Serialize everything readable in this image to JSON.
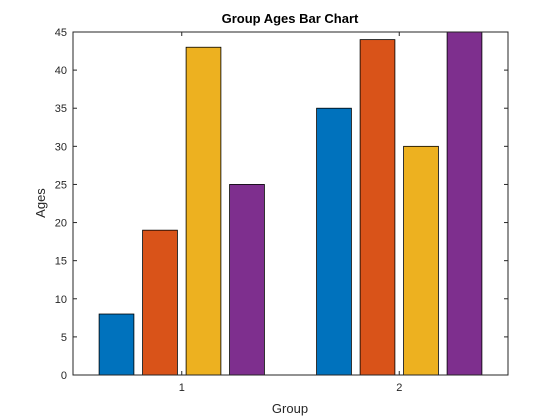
{
  "chart_data": {
    "type": "bar",
    "title": "Group Ages Bar Chart",
    "xlabel": "Group",
    "ylabel": "Ages",
    "categories": [
      "1",
      "2"
    ],
    "ylim": [
      0,
      45
    ],
    "yticks": [
      0,
      5,
      10,
      15,
      20,
      25,
      30,
      35,
      40,
      45
    ],
    "grid": false,
    "legend": "none",
    "series": [
      {
        "values": [
          8,
          35
        ],
        "color": "#0072BD"
      },
      {
        "values": [
          19,
          44
        ],
        "color": "#D95319"
      },
      {
        "values": [
          43,
          30
        ],
        "color": "#EDB120"
      },
      {
        "values": [
          25,
          45
        ],
        "color": "#7E2F8E"
      }
    ]
  }
}
